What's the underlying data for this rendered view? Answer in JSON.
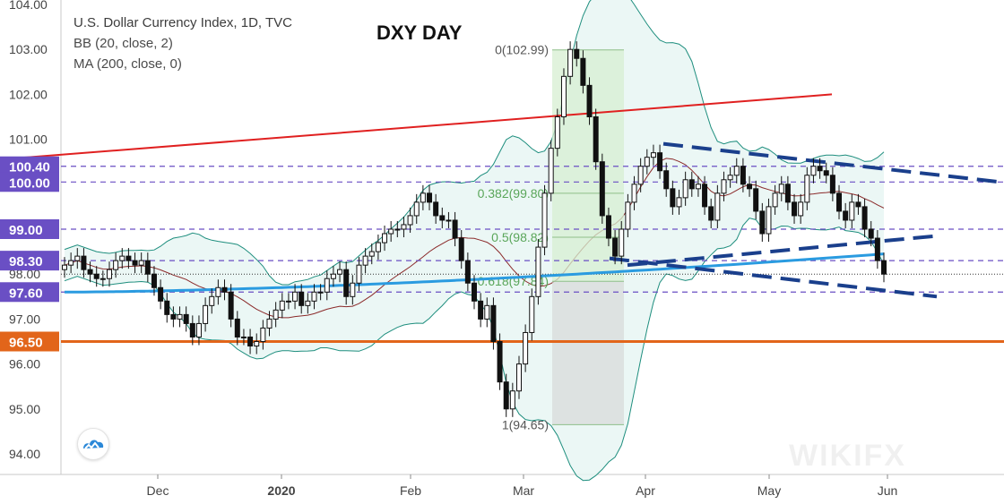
{
  "legend": {
    "line1": "U.S. Dollar Currency Index, 1D, TVC",
    "line2": "BB (20, close, 2)",
    "line3": "MA (200, close, 0)"
  },
  "chart_title": "DXY DAY",
  "watermark": "WIKIFX",
  "chart_data": {
    "type": "candlestick",
    "title": "DXY DAY",
    "ylim": [
      93.6,
      104.0
    ],
    "y_ticks": [
      "94.00",
      "95.00",
      "96.00",
      "97.00",
      "98.00",
      "99.00",
      "100.00",
      "101.00",
      "102.00",
      "103.00",
      "104.00"
    ],
    "x_ticks": [
      "Dec",
      "2020",
      "Feb",
      "Mar",
      "Apr",
      "May",
      "Jun"
    ],
    "horizontal_levels": [
      {
        "label": "100.40",
        "value": 100.4,
        "color": "#6a4fc4"
      },
      {
        "label": "100.00",
        "value": 100.05,
        "color": "#6a4fc4"
      },
      {
        "label": "99.00",
        "value": 99.0,
        "color": "#6a4fc4"
      },
      {
        "label": "98.30",
        "value": 98.3,
        "color": "#6a4fc4"
      },
      {
        "label": "97.60",
        "value": 97.6,
        "color": "#6a4fc4"
      },
      {
        "label": "96.50",
        "value": 96.5,
        "color": "#e2651a"
      }
    ],
    "fibonacci": [
      {
        "label": "0(102.99)",
        "value": 102.99
      },
      {
        "label": "0.382(99.80)",
        "value": 99.8
      },
      {
        "label": "0.5(98.82)",
        "value": 98.82
      },
      {
        "label": "0.618(97.84)",
        "value": 97.84
      },
      {
        "label": "1(94.65)",
        "value": 94.65
      }
    ],
    "candles_close": [
      98.2,
      98.3,
      98.4,
      98.1,
      98.0,
      97.9,
      97.9,
      98.1,
      98.3,
      98.4,
      98.3,
      98.2,
      98.3,
      98.0,
      97.7,
      97.4,
      97.1,
      97.0,
      97.1,
      96.9,
      96.6,
      96.9,
      97.3,
      97.5,
      97.7,
      97.6,
      97.0,
      96.6,
      96.6,
      96.4,
      96.5,
      96.8,
      97.0,
      97.2,
      97.4,
      97.4,
      97.6,
      97.3,
      97.4,
      97.6,
      97.6,
      97.9,
      98.0,
      98.1,
      97.5,
      97.8,
      98.2,
      98.4,
      98.5,
      98.7,
      98.9,
      99.0,
      99.0,
      99.1,
      99.3,
      99.6,
      99.8,
      99.6,
      99.3,
      99.2,
      99.2,
      98.8,
      98.3,
      97.8,
      97.4,
      97.0,
      97.3,
      96.5,
      95.6,
      95.0,
      95.4,
      96.0,
      96.7,
      97.5,
      98.6,
      99.8,
      100.8,
      101.5,
      102.4,
      103.0,
      102.8,
      102.2,
      101.5,
      100.5,
      99.3,
      98.8,
      98.4,
      99.0,
      99.6,
      100.0,
      100.4,
      100.6,
      100.7,
      100.3,
      99.9,
      99.5,
      99.7,
      100.1,
      99.9,
      100.0,
      99.5,
      99.2,
      99.8,
      100.1,
      100.2,
      100.4,
      100.0,
      99.9,
      99.4,
      98.9,
      99.5,
      99.8,
      100.0,
      99.6,
      99.3,
      99.6,
      100.2,
      100.4,
      100.3,
      100.2,
      99.8,
      99.4,
      99.2,
      99.6,
      99.5,
      99.0,
      98.8,
      98.3,
      98.0
    ],
    "ma200_start": 97.6,
    "ma200_end": 98.45
  }
}
